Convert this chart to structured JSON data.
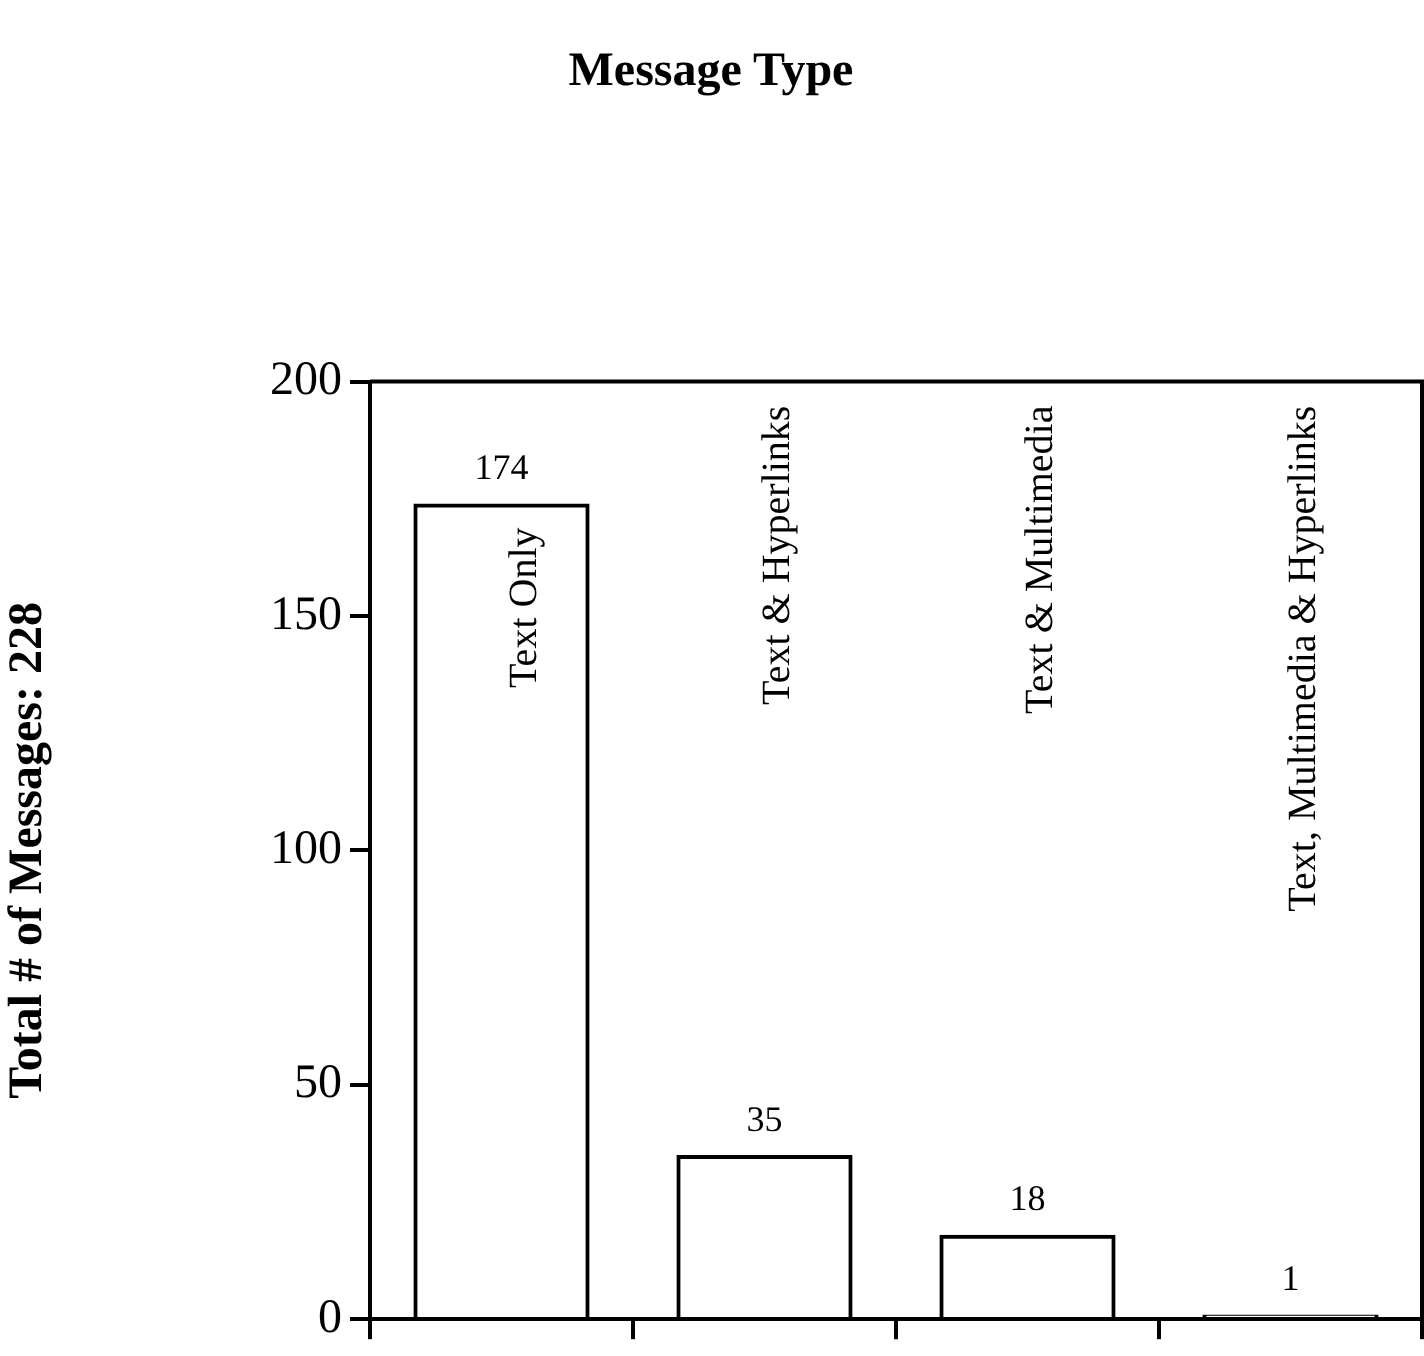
{
  "chart_data": {
    "type": "bar",
    "title": "Message Type",
    "ylabel": "Total # of Messages: 228",
    "categories": [
      "Text Only",
      "Text & Hyperlinks",
      "Text & Multimedia",
      "Text, Multimedia & Hyperlinks"
    ],
    "values": [
      174,
      35,
      18,
      1
    ],
    "color": "#000000",
    "ylim": [
      0,
      200
    ],
    "yticks": [
      0,
      50,
      100,
      150,
      200
    ],
    "grid": false,
    "legend": false,
    "data_labels": true
  }
}
